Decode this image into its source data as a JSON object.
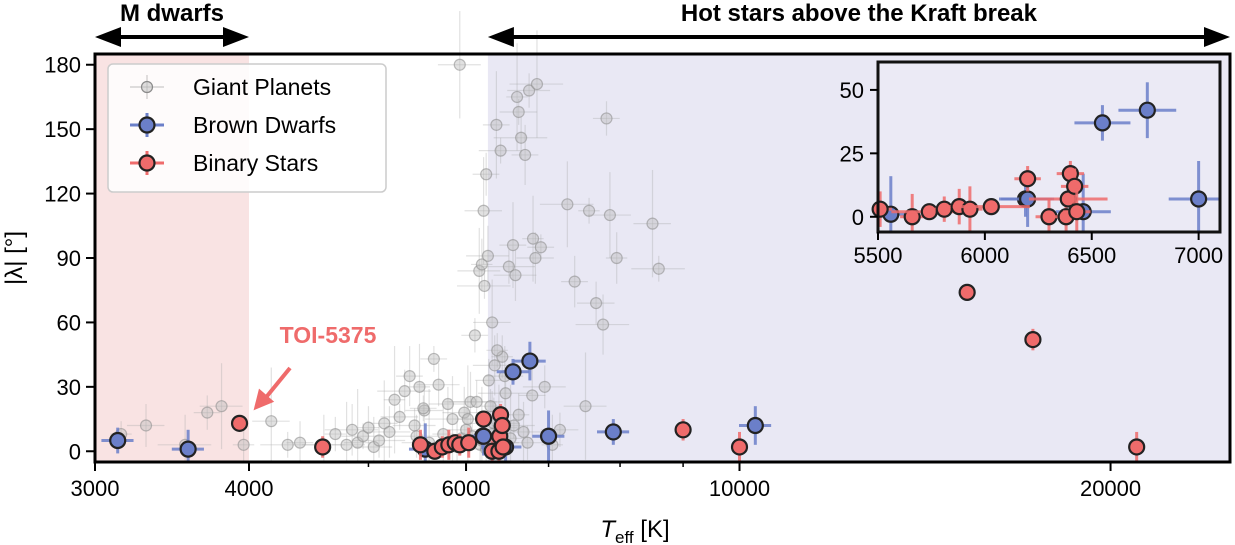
{
  "chart_data": {
    "type": "scatter",
    "title": "",
    "xlabel": "T_eff [K]",
    "xlabel_main": "T",
    "xlabel_sub": "eff",
    "xlabel_unit": " [K]",
    "ylabel": "|λ| [°]",
    "xscale": "log",
    "xlim": [
      3000,
      25000
    ],
    "ylim": [
      -5,
      185
    ],
    "x_ticks": [
      {
        "value": 3000,
        "label": "3000"
      },
      {
        "value": 4000,
        "label": "4000"
      },
      {
        "value": 6000,
        "label": "6000"
      },
      {
        "value": 10000,
        "label": "10000"
      },
      {
        "value": 20000,
        "label": "20000"
      }
    ],
    "y_ticks": [
      {
        "value": 0,
        "label": "0"
      },
      {
        "value": 30,
        "label": "30"
      },
      {
        "value": 60,
        "label": "60"
      },
      {
        "value": 90,
        "label": "90"
      },
      {
        "value": 120,
        "label": "120"
      },
      {
        "value": 150,
        "label": "150"
      },
      {
        "value": 180,
        "label": "180"
      }
    ],
    "regions": [
      {
        "name": "M dwarfs",
        "x_range": [
          3000,
          4000
        ],
        "color": "#f9e3e3",
        "label": "M dwarfs"
      },
      {
        "name": "Hot stars above the Kraft break",
        "x_range": [
          6250,
          25000
        ],
        "color": "#e9e8f4",
        "label": "Hot stars above the Kraft break"
      }
    ],
    "legend": {
      "placement": "top-left",
      "entries": [
        {
          "label": "Giant Planets",
          "color": "#aaaaaa"
        },
        {
          "label": "Brown Dwarfs",
          "color": "#6b7fc9"
        },
        {
          "label": "Binary Stars",
          "color": "#ef6b6b"
        }
      ]
    },
    "annotations": [
      {
        "text": "TOI-5375",
        "target": [
          3930,
          13
        ],
        "color": "#ef6b6b"
      }
    ],
    "series": [
      {
        "name": "Giant Planets",
        "color": "#aaaaaa",
        "points": [
          [
            3150,
            8
          ],
          [
            3300,
            12
          ],
          [
            3550,
            3
          ],
          [
            3700,
            18
          ],
          [
            3800,
            21
          ],
          [
            3960,
            3
          ],
          [
            4170,
            14
          ],
          [
            4300,
            3
          ],
          [
            4400,
            4
          ],
          [
            4600,
            3
          ],
          [
            4700,
            8
          ],
          [
            4800,
            3
          ],
          [
            4850,
            10
          ],
          [
            4900,
            4
          ],
          [
            4950,
            7
          ],
          [
            5000,
            11
          ],
          [
            5050,
            2
          ],
          [
            5100,
            5
          ],
          [
            5150,
            13
          ],
          [
            5200,
            9
          ],
          [
            5250,
            24
          ],
          [
            5300,
            16
          ],
          [
            5350,
            28
          ],
          [
            5400,
            35
          ],
          [
            5450,
            12
          ],
          [
            5500,
            30
          ],
          [
            5550,
            19
          ],
          [
            5600,
            4
          ],
          [
            5650,
            43
          ],
          [
            5700,
            31
          ],
          [
            5750,
            8
          ],
          [
            5800,
            22
          ],
          [
            5850,
            15
          ],
          [
            5900,
            2
          ],
          [
            5930,
            180
          ],
          [
            5950,
            6
          ],
          [
            6000,
            10
          ],
          [
            6050,
            23
          ],
          [
            6100,
            54
          ],
          [
            6150,
            84
          ],
          [
            6180,
            87
          ],
          [
            6200,
            112
          ],
          [
            6210,
            77
          ],
          [
            6230,
            129
          ],
          [
            6250,
            91
          ],
          [
            6280,
            21
          ],
          [
            6300,
            60
          ],
          [
            6320,
            13
          ],
          [
            6350,
            152
          ],
          [
            6400,
            140
          ],
          [
            6420,
            44
          ],
          [
            6450,
            35
          ],
          [
            6500,
            86
          ],
          [
            6550,
            96
          ],
          [
            6580,
            82
          ],
          [
            6600,
            165
          ],
          [
            6620,
            158
          ],
          [
            6650,
            146
          ],
          [
            6700,
            138
          ],
          [
            6750,
            168
          ],
          [
            6800,
            99
          ],
          [
            6830,
            90
          ],
          [
            6850,
            171
          ],
          [
            6900,
            95
          ],
          [
            6950,
            30
          ],
          [
            7050,
            3
          ],
          [
            7150,
            10
          ],
          [
            7250,
            115
          ],
          [
            7350,
            79
          ],
          [
            7500,
            21
          ],
          [
            7550,
            112
          ],
          [
            7650,
            69
          ],
          [
            7750,
            59
          ],
          [
            7800,
            155
          ],
          [
            7850,
            110
          ],
          [
            7950,
            90
          ],
          [
            8500,
            106
          ],
          [
            8600,
            85
          ],
          [
            6260,
            33
          ],
          [
            6330,
            40
          ],
          [
            6360,
            47
          ],
          [
            6380,
            11
          ],
          [
            6460,
            27
          ],
          [
            6520,
            6
          ],
          [
            6560,
            12
          ],
          [
            6620,
            17
          ],
          [
            6680,
            9
          ],
          [
            6730,
            4
          ],
          [
            6790,
            26
          ],
          [
            5980,
            18
          ],
          [
            6020,
            15
          ],
          [
            6070,
            7
          ],
          [
            6120,
            23
          ],
          [
            6160,
            3
          ],
          [
            6230,
            1
          ],
          [
            6300,
            8
          ],
          [
            6400,
            4
          ],
          [
            6180,
            5
          ],
          [
            5540,
            20
          ],
          [
            5470,
            7
          ]
        ]
      },
      {
        "name": "Brown Dwarfs",
        "color": "#6b7fc9",
        "points": [
          [
            3130,
            5
          ],
          [
            3570,
            1
          ],
          [
            5560,
            1
          ],
          [
            6190,
            7
          ],
          [
            6200,
            7
          ],
          [
            6460,
            2
          ],
          [
            6550,
            37
          ],
          [
            6760,
            42
          ],
          [
            7000,
            7
          ],
          [
            7900,
            9
          ],
          [
            10300,
            12
          ]
        ]
      },
      {
        "name": "Binary Stars",
        "color": "#ef6b6b",
        "points": [
          [
            3930,
            13
          ],
          [
            4590,
            2
          ],
          [
            5510,
            3
          ],
          [
            5660,
            0
          ],
          [
            5740,
            2
          ],
          [
            5810,
            3
          ],
          [
            5880,
            4
          ],
          [
            5930,
            3
          ],
          [
            6030,
            4
          ],
          [
            6200,
            15
          ],
          [
            6300,
            0
          ],
          [
            6380,
            0
          ],
          [
            6390,
            7
          ],
          [
            6400,
            17
          ],
          [
            6420,
            12
          ],
          [
            6430,
            2
          ],
          [
            9000,
            10
          ],
          [
            10000,
            2
          ],
          [
            15300,
            74
          ],
          [
            17300,
            52
          ],
          [
            21000,
            2
          ]
        ]
      }
    ],
    "inset": {
      "xlim": [
        5500,
        7100
      ],
      "ylim": [
        -6,
        61
      ],
      "x_ticks": [
        {
          "value": 5500,
          "label": "5500"
        },
        {
          "value": 6000,
          "label": "6000"
        },
        {
          "value": 6500,
          "label": "6500"
        },
        {
          "value": 7000,
          "label": "7000"
        }
      ],
      "y_ticks": [
        {
          "value": 0,
          "label": "0"
        },
        {
          "value": 25,
          "label": "25"
        },
        {
          "value": 50,
          "label": "50"
        }
      ]
    }
  }
}
